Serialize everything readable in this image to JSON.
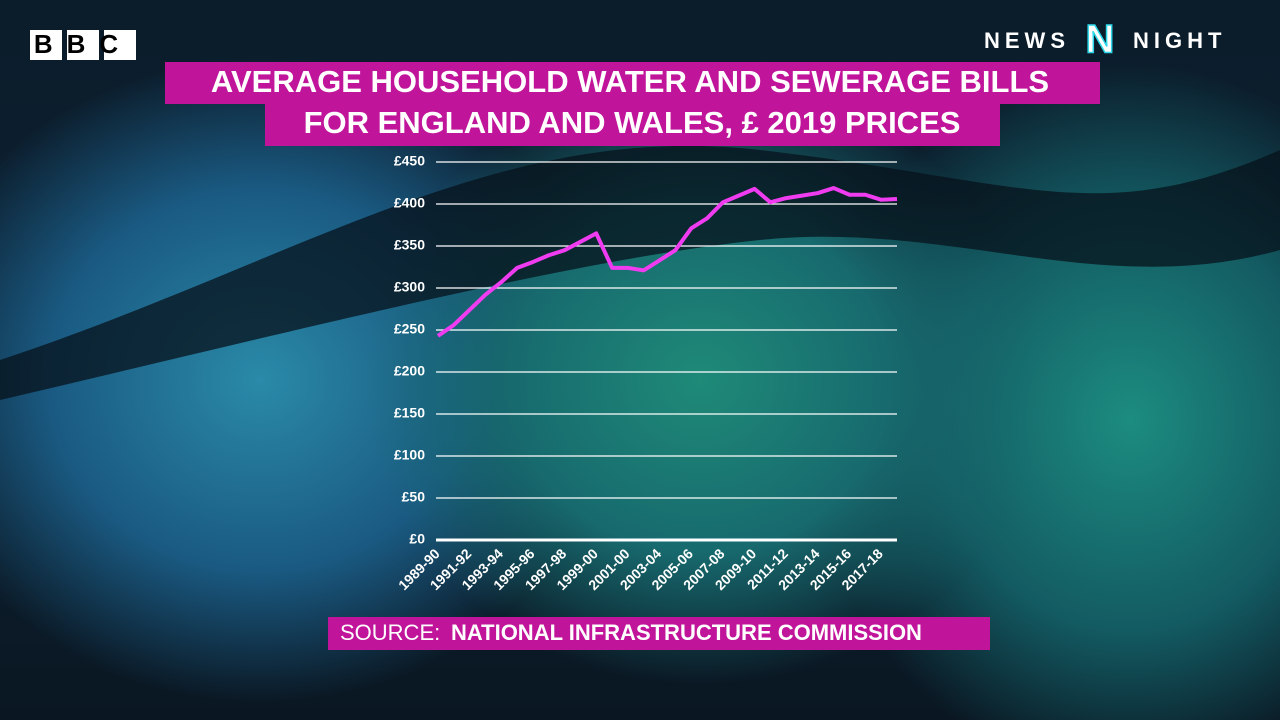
{
  "brand": {
    "logo": "BBC",
    "program_left": "NEWS",
    "program_mark": "N",
    "program_right": "NIGHT"
  },
  "chart_data": {
    "type": "line",
    "title_lines": [
      "AVERAGE HOUSEHOLD WATER AND SEWERAGE BILLS",
      "FOR  ENGLAND AND WALES, £ 2019 PRICES"
    ],
    "source_label": "SOURCE:",
    "source": "NATIONAL INFRASTRUCTURE COMMISSION",
    "categories": [
      "1989-90",
      null,
      "1991-92",
      null,
      "1993-94",
      null,
      "1995-96",
      null,
      "1997-98",
      null,
      "1999-00",
      null,
      "2001-00",
      null,
      "2003-04",
      null,
      "2005-06",
      null,
      "2007-08",
      null,
      "2009-10",
      null,
      "2011-12",
      null,
      "2013-14",
      null,
      "2015-16",
      null,
      "2017-18",
      null
    ],
    "values": [
      243,
      256,
      274,
      292,
      307,
      324,
      331,
      339,
      345,
      355,
      365,
      324,
      324,
      321,
      333,
      345,
      371,
      383,
      402,
      410,
      418,
      402,
      407,
      410,
      413,
      419,
      411,
      411,
      405,
      406
    ],
    "color": "#f03cf0",
    "ylim": [
      0,
      450
    ],
    "yticks": [
      {
        "value": 0,
        "label": "£0"
      },
      {
        "value": 50,
        "label": "£50"
      },
      {
        "value": 100,
        "label": "£100"
      },
      {
        "value": 150,
        "label": "£150"
      },
      {
        "value": 200,
        "label": "£200"
      },
      {
        "value": 250,
        "label": "£250"
      },
      {
        "value": 300,
        "label": "£300"
      },
      {
        "value": 350,
        "label": "£350"
      },
      {
        "value": 400,
        "label": "£400"
      },
      {
        "value": 450,
        "label": "£450"
      }
    ],
    "grid": true
  }
}
